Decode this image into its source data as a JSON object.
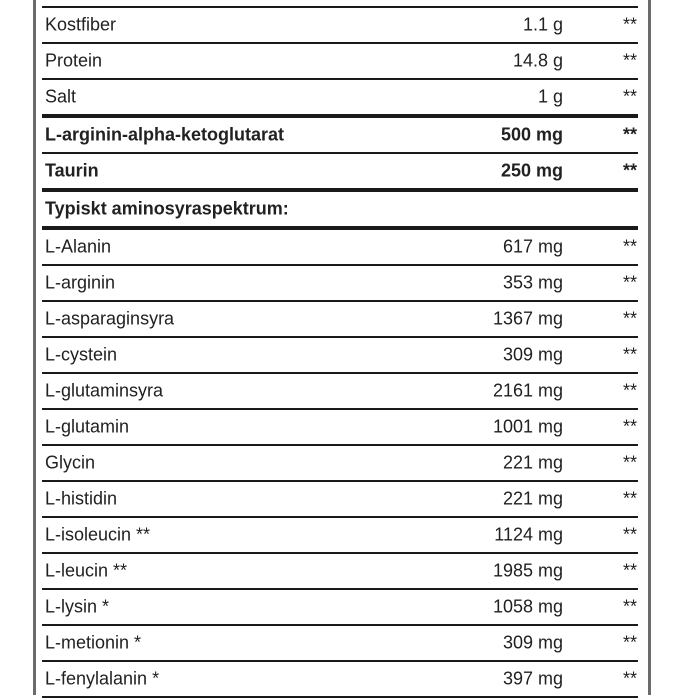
{
  "rows": [
    {
      "name": "Kostfiber",
      "value": "1.1 g",
      "ref": "**"
    },
    {
      "name": "Protein",
      "value": "14.8 g",
      "ref": "**"
    },
    {
      "name": "Salt",
      "value": "1 g",
      "ref": "**",
      "thick": true
    },
    {
      "name": "L-arginin-alpha-ketoglutarat",
      "value": "500 mg",
      "ref": "**",
      "bold": true
    },
    {
      "name": "Taurin",
      "value": "250 mg",
      "ref": "**",
      "bold": true,
      "thick": true
    },
    {
      "name": "Typiskt aminosyraspektrum:",
      "value": "",
      "ref": "",
      "bold": true,
      "thick": true
    },
    {
      "name": "L-Alanin",
      "value": "617 mg",
      "ref": "**"
    },
    {
      "name": "L-arginin",
      "value": "353 mg",
      "ref": "**"
    },
    {
      "name": "L-asparaginsyra",
      "value": "1367 mg",
      "ref": "**"
    },
    {
      "name": "L-cystein",
      "value": "309 mg",
      "ref": "**"
    },
    {
      "name": "L-glutaminsyra",
      "value": "2161 mg",
      "ref": "**"
    },
    {
      "name": "L-glutamin",
      "value": "1001 mg",
      "ref": "**"
    },
    {
      "name": "Glycin",
      "value": "221 mg",
      "ref": "**"
    },
    {
      "name": "L-histidin",
      "value": "221 mg",
      "ref": "**"
    },
    {
      "name": "L-isoleucin **",
      "value": "1124 mg",
      "ref": "**"
    },
    {
      "name": "L-leucin **",
      "value": "1985 mg",
      "ref": "**"
    },
    {
      "name": "L-lysin *",
      "value": "1058 mg",
      "ref": "**"
    },
    {
      "name": "L-metionin *",
      "value": "309 mg",
      "ref": "**"
    },
    {
      "name": "L-fenylalanin *",
      "value": "397 mg",
      "ref": "**"
    }
  ]
}
